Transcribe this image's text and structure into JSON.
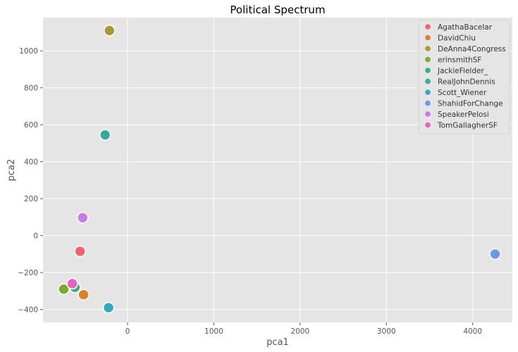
{
  "chart_data": {
    "type": "scatter",
    "title": "Political Spectrum",
    "xlabel": "pca1",
    "ylabel": "pca2",
    "xlim": [
      -980,
      4460
    ],
    "ylim": [
      -470,
      1180
    ],
    "xticks": [
      0,
      1000,
      2000,
      3000,
      4000
    ],
    "yticks": [
      -400,
      -200,
      0,
      200,
      400,
      600,
      800,
      1000
    ],
    "grid": true,
    "legend_position": "top-right",
    "background": "#e5e5e5",
    "series": [
      {
        "name": "AgathaBacelar",
        "color": "#f0626e",
        "points": [
          {
            "x": -550,
            "y": -85
          }
        ]
      },
      {
        "name": "DavidChiu",
        "color": "#d9832b",
        "points": [
          {
            "x": -510,
            "y": -320
          }
        ]
      },
      {
        "name": "DeAnna4Congress",
        "color": "#ab9631",
        "points": [
          {
            "x": -210,
            "y": 1110
          }
        ]
      },
      {
        "name": "erinsmithSF",
        "color": "#7aab31",
        "points": [
          {
            "x": -740,
            "y": -290
          }
        ]
      },
      {
        "name": "JackieFielder_",
        "color": "#35b27b",
        "points": [
          {
            "x": -610,
            "y": -280
          }
        ]
      },
      {
        "name": "RealJohnDennis",
        "color": "#35ab9e",
        "points": [
          {
            "x": -260,
            "y": 545
          }
        ]
      },
      {
        "name": "Scott_Wiener",
        "color": "#36a8c0",
        "points": [
          {
            "x": -220,
            "y": -390
          }
        ]
      },
      {
        "name": "ShahidForChange",
        "color": "#6c97ef",
        "points": [
          {
            "x": 4260,
            "y": -100
          }
        ]
      },
      {
        "name": "SpeakerPelosi",
        "color": "#c97ae9",
        "points": [
          {
            "x": -520,
            "y": 97
          }
        ]
      },
      {
        "name": "TomGallagherSF",
        "color": "#ec5fc0",
        "points": [
          {
            "x": -640,
            "y": -260
          }
        ]
      }
    ]
  }
}
